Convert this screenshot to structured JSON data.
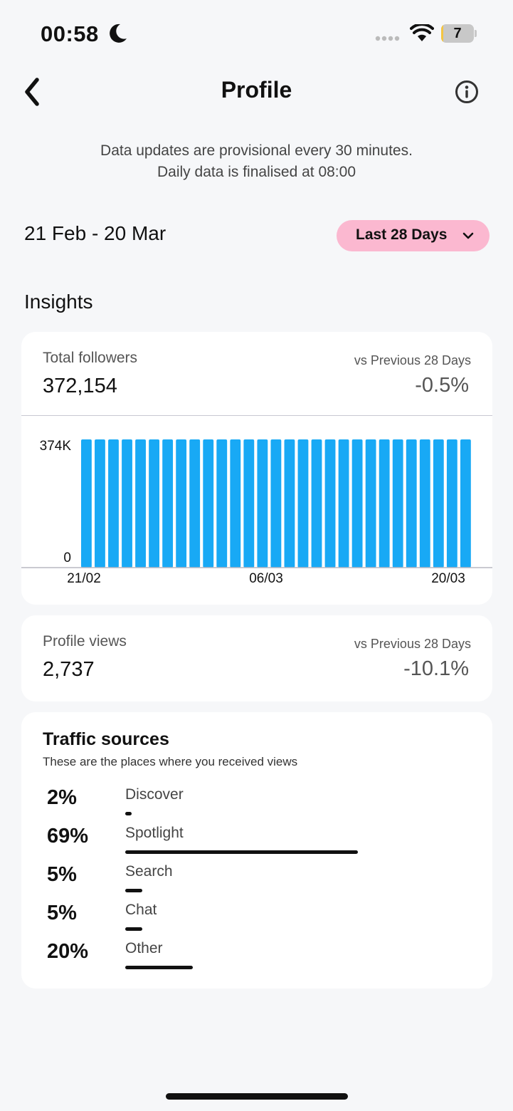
{
  "status_bar": {
    "time": "00:58",
    "battery_level": "7",
    "battery_fraction": 0.07
  },
  "header": {
    "title": "Profile"
  },
  "notice": {
    "line1": "Data updates are provisional every 30 minutes.",
    "line2": "Daily data is finalised at 08:00"
  },
  "filter": {
    "date_range": "21 Feb - 20 Mar",
    "range_label": "Last 28 Days"
  },
  "insights": {
    "title": "Insights"
  },
  "followers": {
    "label": "Total followers",
    "value": "372,154",
    "compare_label": "vs Previous 28 Days",
    "compare_value": "-0.5%"
  },
  "views": {
    "label": "Profile views",
    "value": "2,737",
    "compare_label": "vs Previous 28 Days",
    "compare_value": "-10.1%"
  },
  "traffic": {
    "title": "Traffic sources",
    "subtitle": "These are the places where you received views",
    "sources": [
      {
        "pct": "2%",
        "name": "Discover",
        "value": 2
      },
      {
        "pct": "69%",
        "name": "Spotlight",
        "value": 69
      },
      {
        "pct": "5%",
        "name": "Search",
        "value": 5
      },
      {
        "pct": "5%",
        "name": "Chat",
        "value": 5
      },
      {
        "pct": "20%",
        "name": "Other",
        "value": 20
      }
    ]
  },
  "chart_data": {
    "type": "bar",
    "title": "",
    "xlabel": "",
    "ylabel": "",
    "ylim": [
      0,
      374000
    ],
    "y_ticks": [
      "374K",
      "0"
    ],
    "x_ticks": [
      "21/02",
      "06/03",
      "20/03"
    ],
    "categories": [
      "21/02",
      "22/02",
      "23/02",
      "24/02",
      "25/02",
      "26/02",
      "27/02",
      "28/02",
      "29/02",
      "01/03",
      "02/03",
      "03/03",
      "04/03",
      "05/03",
      "06/03",
      "07/03",
      "08/03",
      "09/03",
      "10/03",
      "11/03",
      "12/03",
      "13/03",
      "14/03",
      "15/03",
      "16/03",
      "17/03",
      "18/03",
      "19/03",
      "20/03"
    ],
    "values": [
      374000,
      374000,
      374000,
      374000,
      374000,
      374000,
      374000,
      374000,
      374000,
      374000,
      374000,
      374000,
      374000,
      374000,
      374000,
      374000,
      374000,
      374000,
      374000,
      374000,
      374000,
      374000,
      374000,
      374000,
      374000,
      374000,
      374000,
      374000,
      374000
    ],
    "color": "#18a9f5"
  },
  "colors": {
    "accent": "#fbb8d0",
    "bar": "#18a9f5"
  }
}
